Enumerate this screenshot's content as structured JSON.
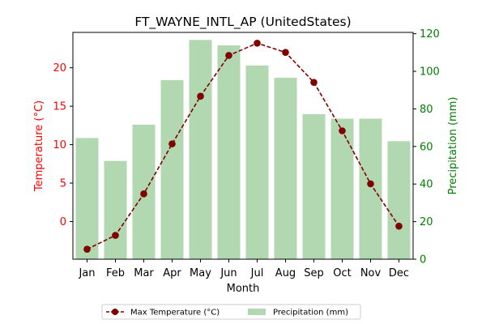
{
  "chart_data": {
    "type": "bar",
    "title": "FT_WAYNE_INTL_AP (UnitedStates)",
    "xlabel": "Month",
    "ylabel_left": "Temperature (°C)",
    "ylabel_right": "Precipitation (mm)",
    "categories": [
      "Jan",
      "Feb",
      "Mar",
      "Apr",
      "May",
      "Jun",
      "Jul",
      "Aug",
      "Sep",
      "Oct",
      "Nov",
      "Dec"
    ],
    "left_axis": {
      "range": [
        -4.9,
        24.6
      ],
      "ticks": [
        0,
        5,
        10,
        15,
        20
      ],
      "color": "#ff0000"
    },
    "right_axis": {
      "range": [
        0,
        120.7
      ],
      "ticks": [
        0,
        20,
        40,
        60,
        80,
        100,
        120
      ],
      "color": "#008000"
    },
    "series": [
      {
        "name": "Max Temperature (°C)",
        "kind": "line",
        "axis": "left",
        "color": "#800000",
        "values": [
          -3.6,
          -1.8,
          3.6,
          10.1,
          16.3,
          21.6,
          23.2,
          22.0,
          18.1,
          11.8,
          4.9,
          -0.6
        ]
      },
      {
        "name": "Precipitation (mm)",
        "kind": "bar",
        "axis": "right",
        "color": "#b2d8b2",
        "values": [
          64.5,
          52.3,
          71.6,
          95.3,
          116.7,
          113.8,
          103.1,
          96.6,
          77.2,
          74.8,
          74.8,
          62.8
        ]
      }
    ],
    "grid": false,
    "legend_position": "bottom-center"
  }
}
